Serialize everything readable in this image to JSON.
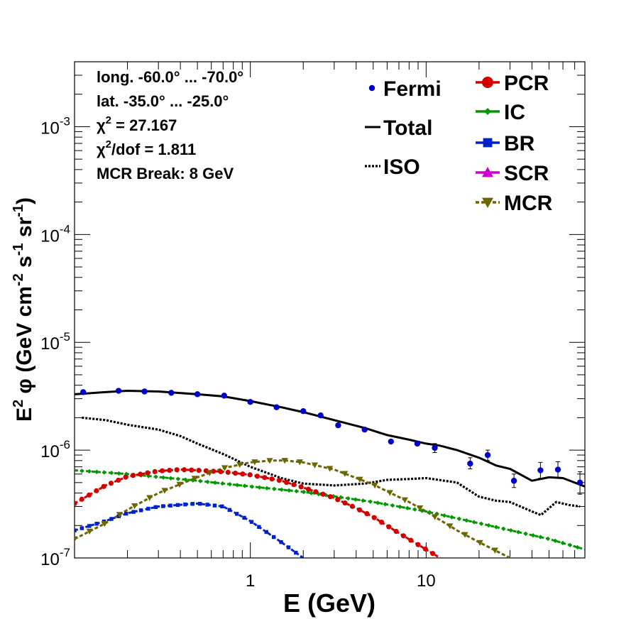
{
  "chart_data": {
    "type": "line",
    "xlabel": "E (GeV)",
    "ylabel_parts": [
      "E",
      "2",
      "  φ (GeV cm",
      "-2",
      " s",
      "-1",
      " sr",
      "-1",
      ")"
    ],
    "x_scale": "log",
    "y_scale": "log",
    "xlim": [
      0.1,
      80
    ],
    "ylim": [
      1e-07,
      0.004
    ],
    "x_ticks": [
      {
        "value": 1,
        "label": "1"
      },
      {
        "value": 10,
        "label": "10"
      }
    ],
    "y_ticks": [
      {
        "value": 1e-07,
        "base": "10",
        "exp": "-7"
      },
      {
        "value": 1e-06,
        "base": "10",
        "exp": "-6"
      },
      {
        "value": 1e-05,
        "base": "10",
        "exp": "-5"
      },
      {
        "value": 0.0001,
        "base": "10",
        "exp": "-4"
      },
      {
        "value": 0.001,
        "base": "10",
        "exp": "-3"
      }
    ],
    "info_lines": [
      {
        "text": "long. -60.0° ... -70.0°"
      },
      {
        "text": "lat. -35.0° ... -25.0°"
      },
      {
        "pre": "χ",
        "sup": "2",
        "post": " = 27.167"
      },
      {
        "pre": "χ",
        "sup": "2",
        "post": "/dof = 1.811"
      },
      {
        "text": "MCR Break:  8 GeV"
      }
    ],
    "legend_left": [
      "Fermi",
      "Total",
      "ISO"
    ],
    "legend_right": [
      "PCR",
      "IC",
      "BR",
      "SCR",
      "MCR"
    ],
    "colors": {
      "fermi": "#0000cc",
      "total": "#000000",
      "iso": "#000000",
      "pcr": "#d40000",
      "ic": "#009900",
      "br": "#0022cc",
      "scr": "#cc00cc",
      "mcr": "#6b6600"
    },
    "fermi": [
      {
        "x": 0.112,
        "y": 3.45e-06
      },
      {
        "x": 0.178,
        "y": 3.55e-06
      },
      {
        "x": 0.25,
        "y": 3.5e-06
      },
      {
        "x": 0.355,
        "y": 3.4e-06
      },
      {
        "x": 0.5,
        "y": 3.3e-06
      },
      {
        "x": 0.71,
        "y": 3.2e-06
      },
      {
        "x": 1.0,
        "y": 2.8e-06
      },
      {
        "x": 1.41,
        "y": 2.5e-06
      },
      {
        "x": 2.0,
        "y": 2.3e-06
      },
      {
        "x": 2.51,
        "y": 2.1e-06
      },
      {
        "x": 3.16,
        "y": 1.7e-06
      },
      {
        "x": 4.47,
        "y": 1.55e-06
      },
      {
        "x": 6.31,
        "y": 1.2e-06
      },
      {
        "x": 8.91,
        "y": 1.15e-06
      },
      {
        "x": 11.2,
        "y": 1.05e-06,
        "err_lo": 9.5e-07,
        "err_hi": 1.15e-06
      },
      {
        "x": 17.8,
        "y": 7.5e-07,
        "err_lo": 6.7e-07,
        "err_hi": 8.5e-07
      },
      {
        "x": 22.4,
        "y": 9e-07,
        "err_lo": 8e-07,
        "err_hi": 1e-06
      },
      {
        "x": 31.6,
        "y": 5.2e-07,
        "err_lo": 4.5e-07,
        "err_hi": 6e-07
      },
      {
        "x": 44.7,
        "y": 6.5e-07,
        "err_lo": 5.5e-07,
        "err_hi": 7.7e-07
      },
      {
        "x": 56.2,
        "y": 6.6e-07,
        "err_lo": 5.6e-07,
        "err_hi": 7.8e-07
      },
      {
        "x": 75.0,
        "y": 5e-07,
        "err_lo": 3.9e-07,
        "err_hi": 6.3e-07
      }
    ],
    "total": {
      "x": [
        0.1,
        0.15,
        0.2,
        0.3,
        0.5,
        0.7,
        1.0,
        1.5,
        2.0,
        3.0,
        4.5,
        6.0,
        8.0,
        10.0,
        12.0,
        15.0,
        20.0,
        25.0,
        30.0,
        40.0,
        50.0,
        60.0,
        80.0
      ],
      "y": [
        3.3e-06,
        3.45e-06,
        3.55e-06,
        3.5e-06,
        3.3e-06,
        3.15e-06,
        2.85e-06,
        2.5e-06,
        2.25e-06,
        1.9e-06,
        1.6e-06,
        1.38e-06,
        1.25e-06,
        1.15e-06,
        1.1e-06,
        1e-06,
        8.5e-07,
        7.2e-07,
        6.7e-07,
        5.2e-07,
        5.6e-07,
        5.5e-07,
        4.6e-07
      ]
    },
    "iso": {
      "x": [
        0.11,
        0.15,
        0.2,
        0.3,
        0.4,
        0.5,
        0.7,
        1.0,
        1.5,
        2.0,
        3.0,
        4.5,
        6.0,
        8.0,
        10.0,
        15.0,
        20.0,
        25.0,
        30.0,
        40.0,
        45.0,
        55.0,
        65.0,
        75.0
      ],
      "y": [
        2e-06,
        1.9e-06,
        1.72e-06,
        1.55e-06,
        1.35e-06,
        1.15e-06,
        9.2e-07,
        7e-07,
        5.5e-07,
        4.9e-07,
        4.7e-07,
        4.9e-07,
        5.3e-07,
        5.4e-07,
        5.5e-07,
        5e-07,
        3.7e-07,
        3.4e-07,
        3.3e-07,
        2.7e-07,
        2.5e-07,
        3.3e-07,
        3.1e-07,
        3e-07
      ]
    },
    "pcr": {
      "x": [
        0.1,
        0.15,
        0.2,
        0.3,
        0.4,
        0.5,
        0.7,
        1.0,
        1.5,
        2.0,
        3.0,
        4.0,
        5.0,
        7.0,
        10.0,
        12.0
      ],
      "y": [
        3.2e-07,
        4.7e-07,
        5.7e-07,
        6.4e-07,
        6.6e-07,
        6.5e-07,
        6.3e-07,
        5.9e-07,
        5.2e-07,
        4.5e-07,
        3.6e-07,
        2.9e-07,
        2.4e-07,
        1.7e-07,
        1.2e-07,
        1e-07
      ]
    },
    "ic": {
      "x": [
        0.1,
        0.2,
        0.5,
        1.0,
        2.0,
        5.0,
        10.0,
        20.0,
        50.0,
        80.0
      ],
      "y": [
        6.5e-07,
        6e-07,
        5.2e-07,
        4.6e-07,
        4.1e-07,
        3.3e-07,
        2.7e-07,
        2.1e-07,
        1.5e-07,
        1.2e-07
      ]
    },
    "br": {
      "x": [
        0.1,
        0.15,
        0.2,
        0.3,
        0.5,
        0.7,
        1.0,
        1.5,
        2.0
      ],
      "y": [
        1.8e-07,
        2.2e-07,
        2.6e-07,
        3e-07,
        3.2e-07,
        3e-07,
        2.2e-07,
        1.4e-07,
        1e-07
      ]
    },
    "mcr": {
      "x": [
        0.1,
        0.15,
        0.2,
        0.3,
        0.5,
        0.7,
        1.0,
        1.3,
        1.6,
        2.0,
        3.0,
        5.0,
        8.0,
        10.0,
        15.0,
        20.0,
        30.0
      ],
      "y": [
        1.5e-07,
        2.1e-07,
        2.8e-07,
        4e-07,
        5.6e-07,
        6.8e-07,
        7.7e-07,
        8e-07,
        8e-07,
        7.7e-07,
        6.6e-07,
        4.8e-07,
        3.3e-07,
        2.7e-07,
        1.8e-07,
        1.4e-07,
        1e-07
      ]
    }
  }
}
